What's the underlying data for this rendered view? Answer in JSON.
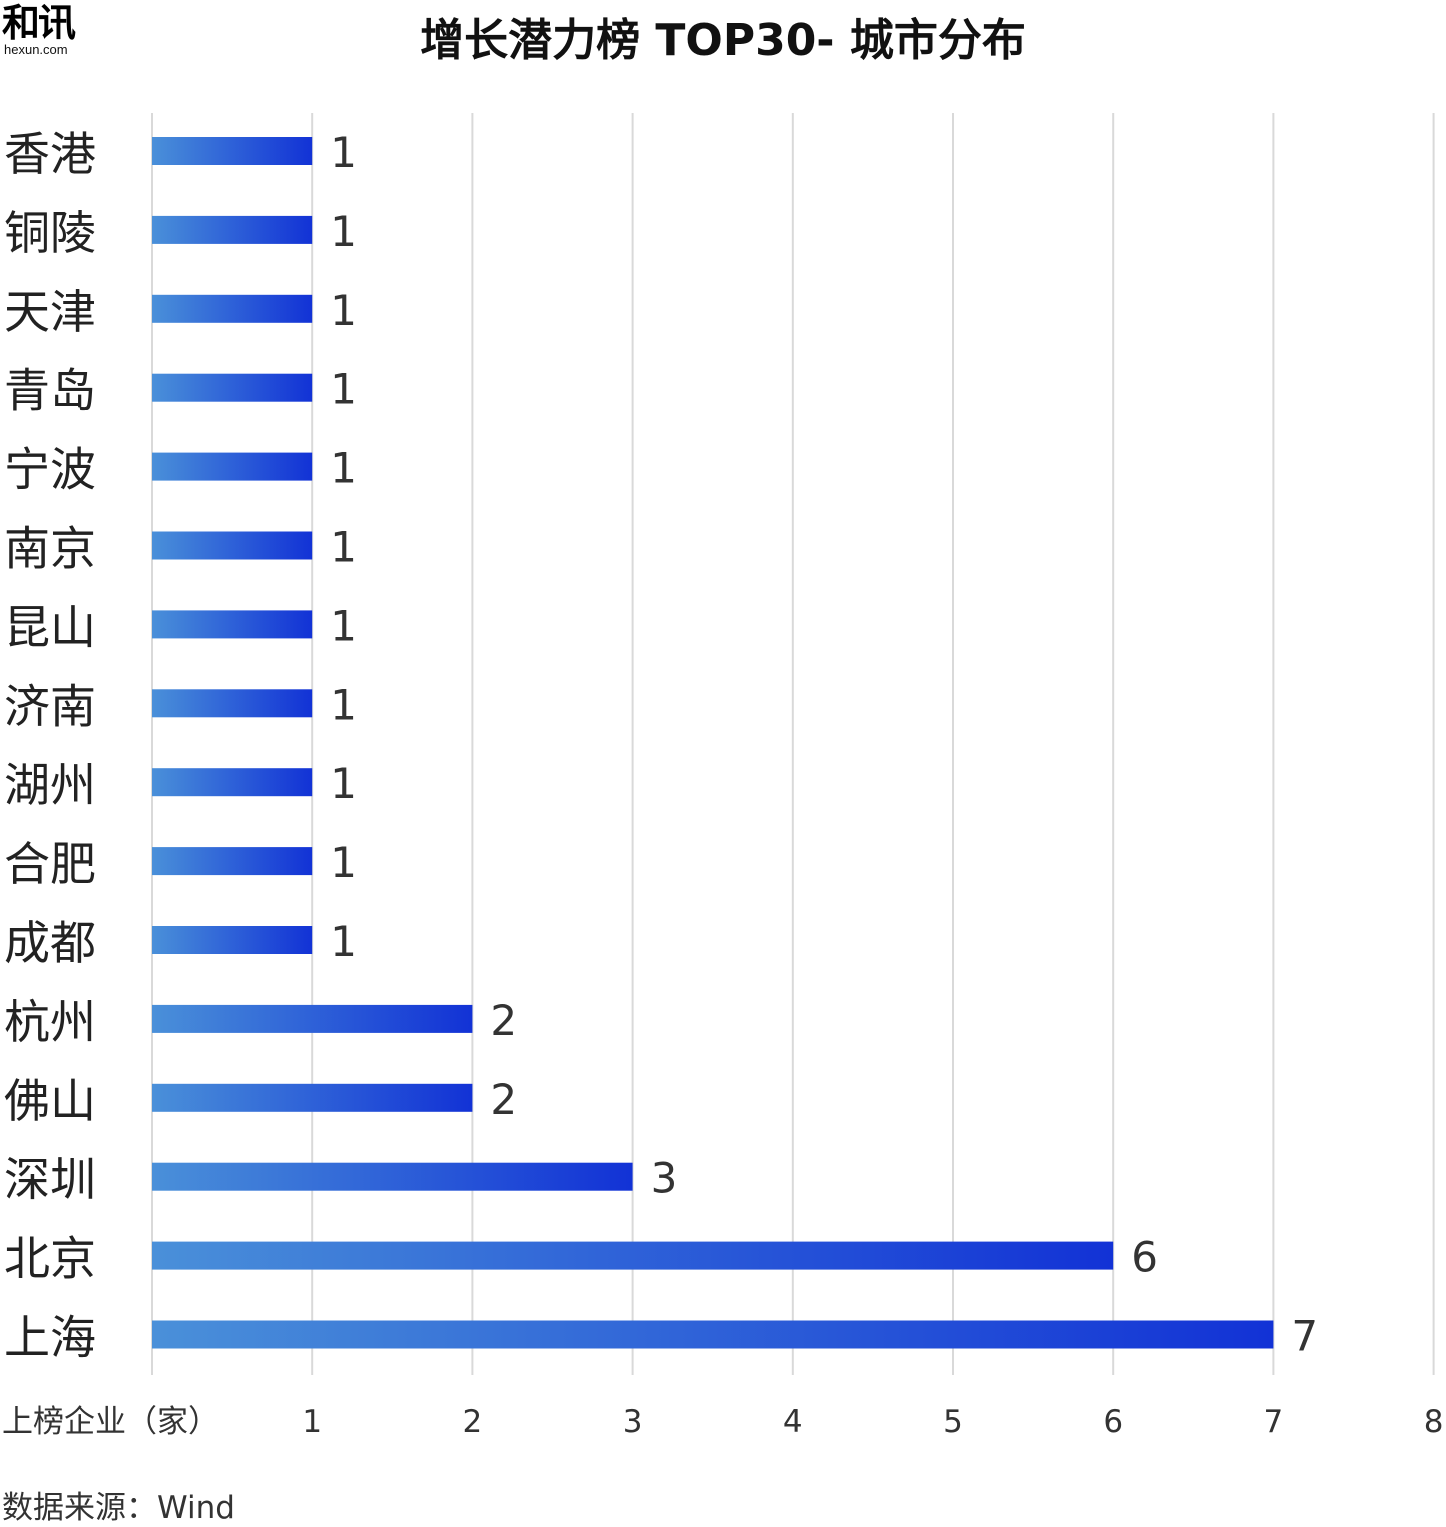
{
  "logo": {
    "mark": "和讯",
    "sub": "hexun.com"
  },
  "title": "增长潜力榜 TOP30- 城市分布",
  "axis_title": "上榜企业（家）",
  "source": "数据来源：Wind",
  "colors": {
    "bar_start": "#4a90d9",
    "bar_end": "#1232d6",
    "grid": "#d9d9d9",
    "text": "#333333"
  },
  "chart_data": {
    "type": "bar",
    "orientation": "horizontal",
    "title": "增长潜力榜 TOP30- 城市分布",
    "xlabel": "上榜企业（家）",
    "ylabel": "",
    "xlim": [
      0,
      8
    ],
    "xticks": [
      1,
      2,
      3,
      4,
      5,
      6,
      7,
      8
    ],
    "categories": [
      "香港",
      "铜陵",
      "天津",
      "青岛",
      "宁波",
      "南京",
      "昆山",
      "济南",
      "湖州",
      "合肥",
      "成都",
      "杭州",
      "佛山",
      "深圳",
      "北京",
      "上海"
    ],
    "values": [
      1,
      1,
      1,
      1,
      1,
      1,
      1,
      1,
      1,
      1,
      1,
      2,
      2,
      3,
      6,
      7
    ],
    "grid": true
  }
}
